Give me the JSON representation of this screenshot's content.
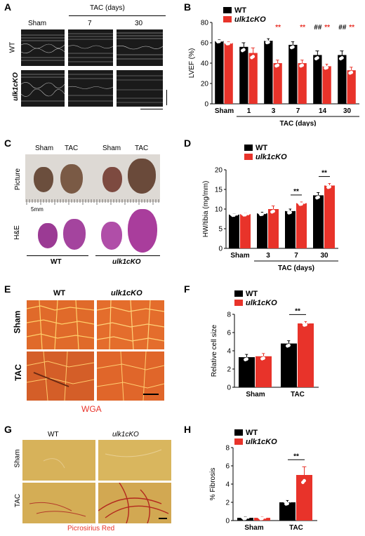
{
  "panels": {
    "A": {
      "letter": "A",
      "header_tac": "TAC (days)",
      "cols": [
        "Sham",
        "7",
        "30"
      ],
      "rows": [
        "WT",
        "ulk1cKO"
      ]
    },
    "B": {
      "letter": "B"
    },
    "C": {
      "letter": "C",
      "cols": [
        "Sham",
        "TAC",
        "Sham",
        "TAC"
      ],
      "row_picture": "Picture",
      "row_he": "H&E",
      "scale": "5mm",
      "groups": [
        "WT",
        "ulk1cKO"
      ]
    },
    "D": {
      "letter": "D"
    },
    "E": {
      "letter": "E",
      "cols": [
        "WT",
        "ulk1cKO"
      ],
      "rows": [
        "Sham",
        "TAC"
      ],
      "stain": "WGA"
    },
    "F": {
      "letter": "F"
    },
    "G": {
      "letter": "G",
      "cols": [
        "WT",
        "ulk1cKO"
      ],
      "rows": [
        "Sham",
        "TAC"
      ],
      "stain": "Picrosirius Red"
    },
    "H": {
      "letter": "H"
    }
  },
  "colors": {
    "wt": "#000000",
    "ko": "#e8332a",
    "sig_red": "#e8332a"
  },
  "chart_data": [
    {
      "id": "B",
      "type": "bar",
      "ylabel": "LVEF (%)",
      "xlabel": "TAC (days)",
      "ylim": [
        0,
        80
      ],
      "yticks": [
        0,
        20,
        40,
        60,
        80
      ],
      "categories": [
        "Sham",
        "1",
        "3",
        "7",
        "14",
        "30"
      ],
      "legend": "top-left",
      "series": [
        {
          "name": "WT",
          "values": [
            62,
            56,
            62,
            58,
            48,
            48
          ],
          "err": [
            1,
            4,
            2,
            3,
            4,
            4
          ]
        },
        {
          "name": "ulk1cKO",
          "values": [
            60,
            50,
            40,
            40,
            37,
            33
          ],
          "err": [
            1,
            5,
            3,
            3,
            2,
            3
          ]
        }
      ],
      "annotations": [
        {
          "category": "3",
          "text": "**",
          "series": "ulk1cKO",
          "color": "red"
        },
        {
          "category": "7",
          "text": "**",
          "series": "ulk1cKO",
          "color": "red"
        },
        {
          "category": "14",
          "text": "##",
          "series": "WT",
          "color": "black"
        },
        {
          "category": "14",
          "text": "**",
          "series": "ulk1cKO",
          "color": "red"
        },
        {
          "category": "30",
          "text": "##",
          "series": "WT",
          "color": "black"
        },
        {
          "category": "30",
          "text": "**",
          "series": "ulk1cKO",
          "color": "red"
        }
      ]
    },
    {
      "id": "D",
      "type": "bar",
      "ylabel": "HW/tibia (mg/mm)",
      "xlabel": "TAC (days)",
      "ylim": [
        0,
        20
      ],
      "yticks": [
        0,
        5,
        10,
        15,
        20
      ],
      "categories": [
        "Sham",
        "3",
        "7",
        "30"
      ],
      "legend": "top-left",
      "series": [
        {
          "name": "WT",
          "values": [
            8.6,
            8.9,
            9.5,
            13.5
          ],
          "err": [
            0.2,
            0.3,
            0.5,
            0.7
          ]
        },
        {
          "name": "ulk1cKO",
          "values": [
            8.7,
            10.0,
            11.5,
            16.0
          ],
          "err": [
            0.2,
            0.8,
            0.3,
            0.5
          ]
        }
      ],
      "annotations": [
        {
          "category": "7",
          "text": "**",
          "color": "black",
          "bracket": true
        },
        {
          "category": "30",
          "text": "**",
          "color": "black",
          "bracket": true
        }
      ]
    },
    {
      "id": "F",
      "type": "bar",
      "ylabel": "Relative cell size",
      "xlabel": "",
      "ylim": [
        0,
        8
      ],
      "yticks": [
        0,
        2,
        4,
        6,
        8
      ],
      "categories": [
        "Sham",
        "TAC"
      ],
      "legend": "top-left",
      "series": [
        {
          "name": "WT",
          "values": [
            3.3,
            4.8
          ],
          "err": [
            0.3,
            0.3
          ]
        },
        {
          "name": "ulk1cKO",
          "values": [
            3.4,
            7.0
          ],
          "err": [
            0.3,
            0.2
          ]
        }
      ],
      "annotations": [
        {
          "category": "TAC",
          "text": "**",
          "color": "black",
          "bracket": true
        }
      ]
    },
    {
      "id": "H",
      "type": "bar",
      "ylabel": "% Fibrosis",
      "xlabel": "",
      "ylim": [
        0,
        8
      ],
      "yticks": [
        0,
        2,
        4,
        6,
        8
      ],
      "categories": [
        "Sham",
        "TAC"
      ],
      "legend": "top-left",
      "series": [
        {
          "name": "WT",
          "values": [
            0.3,
            2.0
          ],
          "err": [
            0.1,
            0.2
          ]
        },
        {
          "name": "ulk1cKO",
          "values": [
            0.3,
            5.0
          ],
          "err": [
            0.1,
            0.9
          ]
        }
      ],
      "annotations": [
        {
          "category": "TAC",
          "text": "**",
          "color": "black",
          "bracket": true
        }
      ]
    }
  ]
}
